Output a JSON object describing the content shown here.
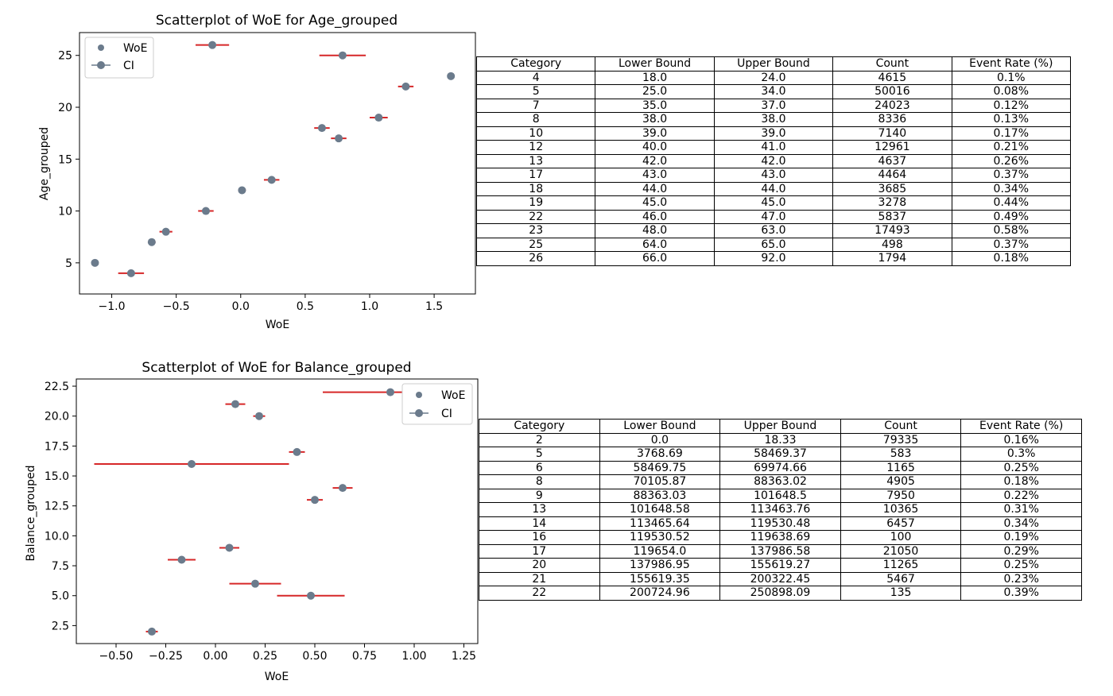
{
  "charts": [
    {
      "title": "Scatterplot of WoE for Age_grouped",
      "xlabel": "WoE",
      "ylabel": "Age_grouped",
      "legend": {
        "position": "top-left",
        "items": [
          "WoE",
          "CI"
        ]
      },
      "xticks": [
        "−1.0",
        "−0.5",
        "0.0",
        "0.5",
        "1.0",
        "1.5"
      ],
      "yticks": [
        "5",
        "10",
        "15",
        "20",
        "25"
      ],
      "table": {
        "columns": [
          "Category",
          "Lower Bound",
          "Upper Bound",
          "Count",
          "Event Rate (%)"
        ],
        "rows": [
          [
            "4",
            "18.0",
            "24.0",
            "4615",
            "0.1%"
          ],
          [
            "5",
            "25.0",
            "34.0",
            "50016",
            "0.08%"
          ],
          [
            "7",
            "35.0",
            "37.0",
            "24023",
            "0.12%"
          ],
          [
            "8",
            "38.0",
            "38.0",
            "8336",
            "0.13%"
          ],
          [
            "10",
            "39.0",
            "39.0",
            "7140",
            "0.17%"
          ],
          [
            "12",
            "40.0",
            "41.0",
            "12961",
            "0.21%"
          ],
          [
            "13",
            "42.0",
            "42.0",
            "4637",
            "0.26%"
          ],
          [
            "17",
            "43.0",
            "43.0",
            "4464",
            "0.37%"
          ],
          [
            "18",
            "44.0",
            "44.0",
            "3685",
            "0.34%"
          ],
          [
            "19",
            "45.0",
            "45.0",
            "3278",
            "0.44%"
          ],
          [
            "22",
            "46.0",
            "47.0",
            "5837",
            "0.49%"
          ],
          [
            "23",
            "48.0",
            "63.0",
            "17493",
            "0.58%"
          ],
          [
            "25",
            "64.0",
            "65.0",
            "498",
            "0.37%"
          ],
          [
            "26",
            "66.0",
            "92.0",
            "1794",
            "0.18%"
          ]
        ]
      }
    },
    {
      "title": "Scatterplot of WoE for Balance_grouped",
      "xlabel": "WoE",
      "ylabel": "Balance_grouped",
      "legend": {
        "position": "top-right",
        "items": [
          "WoE",
          "CI"
        ]
      },
      "xticks": [
        "−0.50",
        "−0.25",
        "0.00",
        "0.25",
        "0.50",
        "0.75",
        "1.00",
        "1.25"
      ],
      "yticks": [
        "2.5",
        "5.0",
        "7.5",
        "10.0",
        "12.5",
        "15.0",
        "17.5",
        "20.0",
        "22.5"
      ],
      "table": {
        "columns": [
          "Category",
          "Lower Bound",
          "Upper Bound",
          "Count",
          "Event Rate (%)"
        ],
        "rows": [
          [
            "2",
            "0.0",
            "18.33",
            "79335",
            "0.16%"
          ],
          [
            "5",
            "3768.69",
            "58469.37",
            "583",
            "0.3%"
          ],
          [
            "6",
            "58469.75",
            "69974.66",
            "1165",
            "0.25%"
          ],
          [
            "8",
            "70105.87",
            "88363.02",
            "4905",
            "0.18%"
          ],
          [
            "9",
            "88363.03",
            "101648.5",
            "7950",
            "0.22%"
          ],
          [
            "13",
            "101648.58",
            "113463.76",
            "10365",
            "0.31%"
          ],
          [
            "14",
            "113465.64",
            "119530.48",
            "6457",
            "0.34%"
          ],
          [
            "16",
            "119530.52",
            "119638.69",
            "100",
            "0.19%"
          ],
          [
            "17",
            "119654.0",
            "137986.58",
            "21050",
            "0.29%"
          ],
          [
            "20",
            "137986.95",
            "155619.27",
            "11265",
            "0.25%"
          ],
          [
            "21",
            "155619.35",
            "200322.45",
            "5467",
            "0.23%"
          ],
          [
            "22",
            "200724.96",
            "250898.09",
            "135",
            "0.39%"
          ]
        ]
      }
    }
  ],
  "colors": {
    "marker": "#6b7b8c",
    "ci": "#d62728",
    "axis": "#000000"
  },
  "chart_data": [
    {
      "type": "scatter",
      "title": "Scatterplot of WoE for Age_grouped",
      "xlabel": "WoE",
      "ylabel": "Age_grouped",
      "xlim": [
        -1.25,
        1.82
      ],
      "ylim": [
        2.0,
        27.2
      ],
      "xticks": [
        -1.0,
        -0.5,
        0.0,
        0.5,
        1.0,
        1.5
      ],
      "yticks": [
        5,
        10,
        15,
        20,
        25
      ],
      "series": [
        {
          "name": "WoE",
          "x": [
            -1.13,
            -0.85,
            -0.69,
            -0.58,
            -0.27,
            0.01,
            0.24,
            0.63,
            0.76,
            1.07,
            1.63,
            1.28,
            0.79,
            -0.22
          ],
          "y": [
            5,
            4,
            7,
            8,
            10,
            12,
            13,
            18,
            17,
            19,
            23,
            22,
            25,
            26
          ]
        },
        {
          "name": "CI",
          "lo": [
            -1.15,
            -0.95,
            -0.72,
            -0.63,
            -0.33,
            -0.02,
            0.18,
            0.57,
            0.7,
            1.0,
            1.61,
            1.22,
            0.61,
            -0.35
          ],
          "hi": [
            -1.11,
            -0.75,
            -0.66,
            -0.53,
            -0.21,
            0.04,
            0.3,
            0.69,
            0.82,
            1.14,
            1.65,
            1.34,
            0.97,
            -0.09
          ]
        }
      ],
      "grid": false,
      "legend": "top-left"
    },
    {
      "type": "scatter",
      "title": "Scatterplot of WoE for Balance_grouped",
      "xlabel": "WoE",
      "ylabel": "Balance_grouped",
      "xlim": [
        -0.7,
        1.32
      ],
      "ylim": [
        1.0,
        23.1
      ],
      "xticks": [
        -0.5,
        -0.25,
        0.0,
        0.25,
        0.5,
        0.75,
        1.0,
        1.25
      ],
      "yticks": [
        2.5,
        5.0,
        7.5,
        10.0,
        12.5,
        15.0,
        17.5,
        20.0,
        22.5
      ],
      "series": [
        {
          "name": "WoE",
          "x": [
            -0.32,
            0.48,
            0.2,
            -0.17,
            0.07,
            0.5,
            0.64,
            -0.12,
            0.41,
            0.22,
            0.1,
            0.88
          ],
          "y": [
            2,
            5,
            6,
            8,
            9,
            13,
            14,
            16,
            17,
            20,
            21,
            22
          ]
        },
        {
          "name": "CI",
          "lo": [
            -0.35,
            0.31,
            0.07,
            -0.24,
            0.02,
            0.46,
            0.59,
            -0.61,
            0.37,
            0.19,
            0.05,
            0.54
          ],
          "hi": [
            -0.29,
            0.65,
            0.33,
            -0.1,
            0.12,
            0.54,
            0.69,
            0.37,
            0.45,
            0.25,
            0.15,
            1.21
          ]
        }
      ],
      "grid": false,
      "legend": "top-right"
    }
  ]
}
